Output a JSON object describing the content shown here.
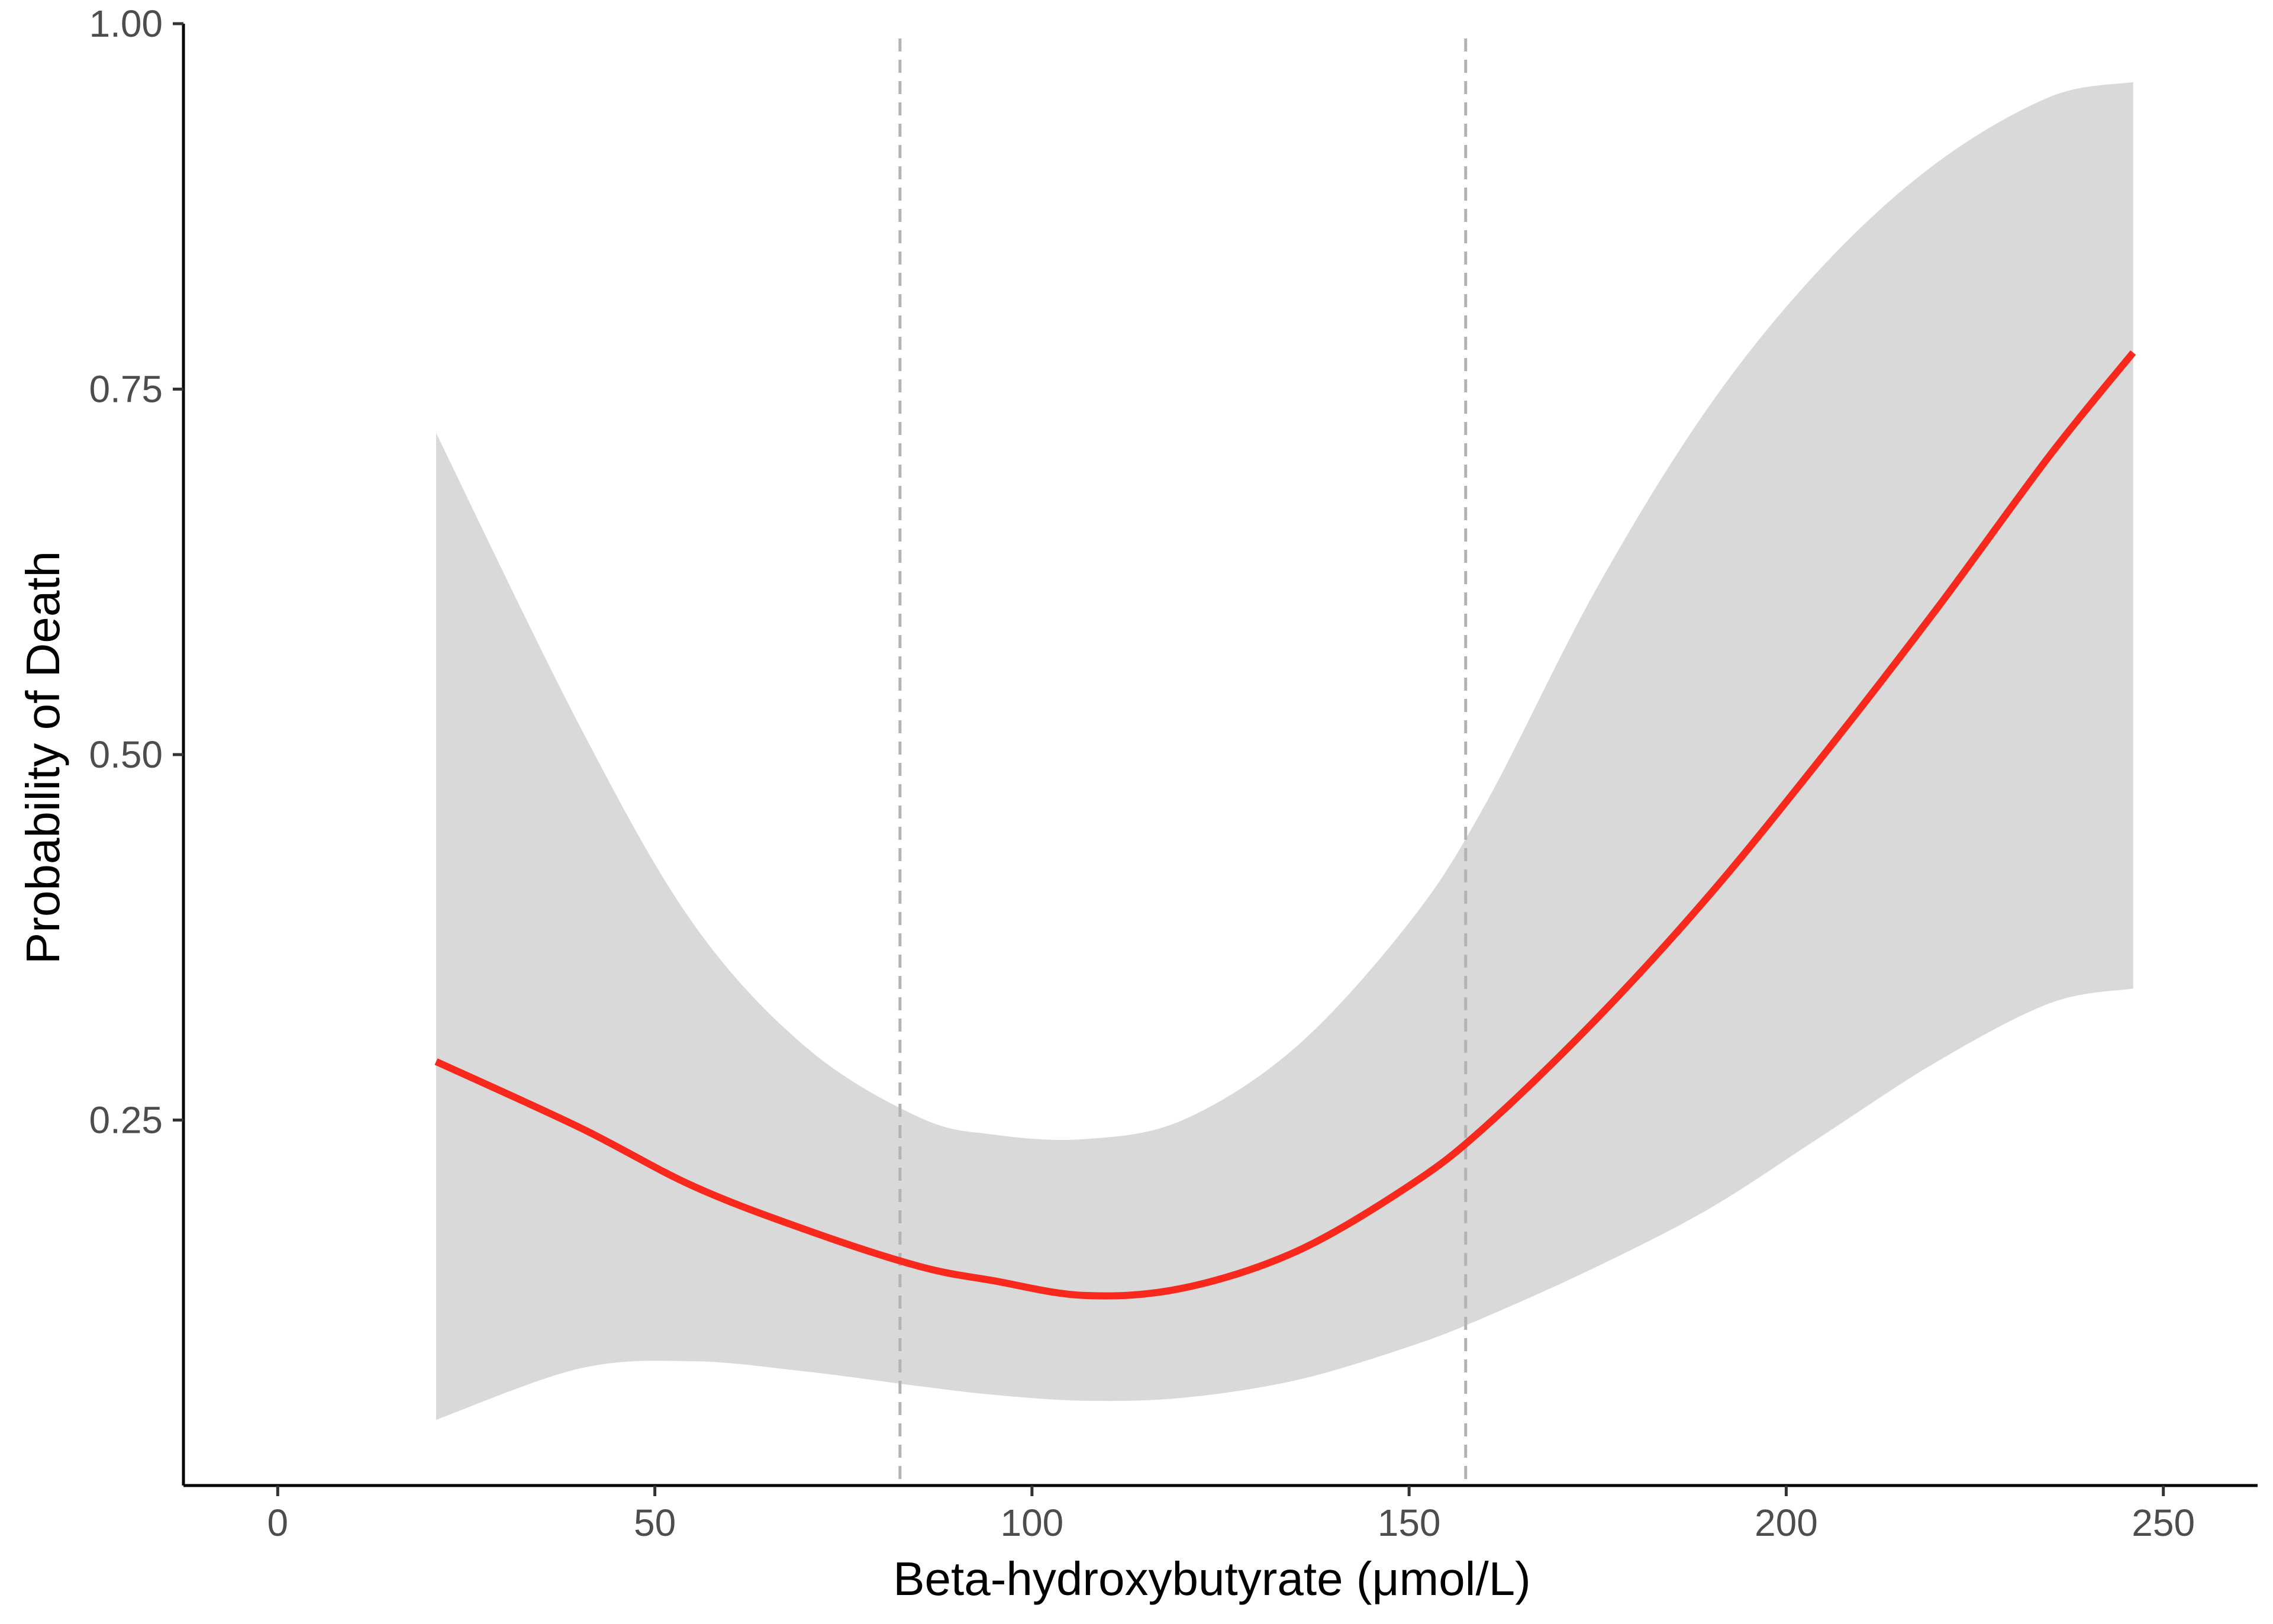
{
  "chart_data": {
    "type": "line",
    "xlabel": "Beta-hydroxybutyrate (μmol/L)",
    "ylabel": "Probability of Death",
    "xlim": [
      -12.5,
      262.5
    ],
    "ylim": [
      0.0,
      1.0
    ],
    "x_ticks": [
      0,
      50,
      100,
      150,
      200,
      250
    ],
    "x_tick_labels": [
      "0",
      "50",
      "100",
      "150",
      "200",
      "250"
    ],
    "y_ticks": [
      0.25,
      0.5,
      0.75,
      1.0
    ],
    "y_tick_labels": [
      "0.25",
      "0.50",
      "0.75",
      "1.00"
    ],
    "grid": false,
    "reference_lines": [
      82.5,
      157.5
    ],
    "colors": {
      "line": "#f8291c",
      "ribbon": "#d9d9d9",
      "reference": "#b3b3b3",
      "axis": "#000000"
    },
    "series": [
      {
        "x": [
          21,
          40,
          55,
          70,
          85,
          95,
          107,
          120,
          135,
          150,
          160,
          175,
          190,
          205,
          220,
          235,
          246
        ],
        "y": [
          0.29,
          0.245,
          0.205,
          0.175,
          0.15,
          0.14,
          0.13,
          0.135,
          0.16,
          0.205,
          0.245,
          0.32,
          0.405,
          0.5,
          0.6,
          0.705,
          0.775
        ],
        "lower": [
          0.045,
          0.08,
          0.085,
          0.078,
          0.068,
          0.062,
          0.058,
          0.06,
          0.072,
          0.095,
          0.115,
          0.15,
          0.19,
          0.24,
          0.29,
          0.33,
          0.34
        ],
        "upper": [
          0.72,
          0.52,
          0.385,
          0.3,
          0.252,
          0.24,
          0.237,
          0.25,
          0.3,
          0.385,
          0.465,
          0.615,
          0.74,
          0.835,
          0.905,
          0.95,
          0.96
        ]
      }
    ]
  }
}
